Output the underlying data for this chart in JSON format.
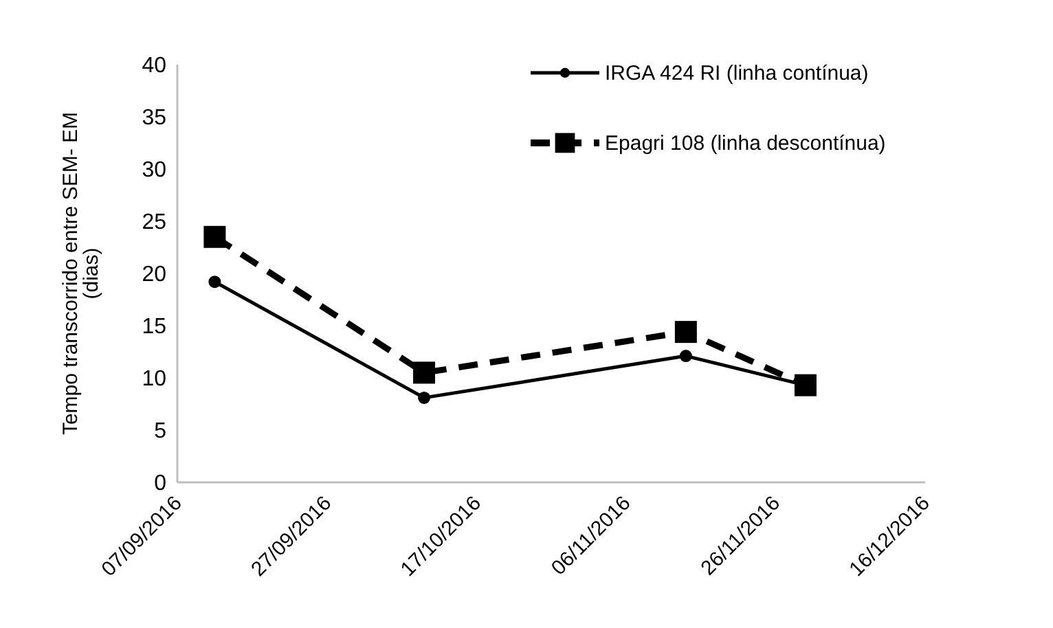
{
  "chart_data": {
    "type": "line",
    "ylabel": "Tempo transcorrido entre SEM- EM (dias)",
    "ylim": [
      0,
      40
    ],
    "yticks": [
      0,
      5,
      10,
      15,
      20,
      25,
      30,
      35,
      40
    ],
    "xlim": [
      "2016-09-07",
      "2016-12-16"
    ],
    "xticks": [
      {
        "value": "2016-09-07",
        "label": "07/09/2016"
      },
      {
        "value": "2016-09-27",
        "label": "27/09/2016"
      },
      {
        "value": "2016-10-17",
        "label": "17/10/2016"
      },
      {
        "value": "2016-11-06",
        "label": "06/11/2016"
      },
      {
        "value": "2016-11-26",
        "label": "26/11/2016"
      },
      {
        "value": "2016-12-16",
        "label": "16/12/2016"
      }
    ],
    "x": [
      "2016-09-12",
      "2016-10-10",
      "2016-11-14",
      "2016-11-30"
    ],
    "grid": false,
    "legend": "top right",
    "series": [
      {
        "name": "IRGA 424 RI (linha contínua)",
        "color": "#000000",
        "marker": "circle",
        "line_style": "solid",
        "values": [
          19.2,
          8.1,
          12.1,
          9.3
        ]
      },
      {
        "name": "Epagri 108 (linha descontínua)",
        "color": "#000000",
        "marker": "square",
        "line_style": "dashed",
        "values": [
          23.5,
          10.5,
          14.4,
          9.3
        ]
      }
    ]
  }
}
